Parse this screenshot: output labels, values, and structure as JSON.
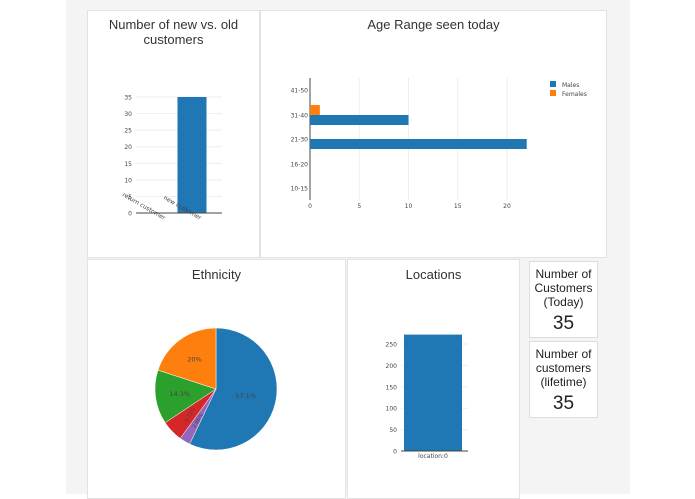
{
  "panels": {
    "new_old": {
      "title": "Number of new vs. old customers"
    },
    "age": {
      "title": "Age Range seen today"
    },
    "ethnicity": {
      "title": "Ethnicity"
    },
    "locations": {
      "title": "Locations"
    }
  },
  "cards": [
    {
      "label": "Number of Customers (Today)",
      "value": "35"
    },
    {
      "label": "Number of customers (lifetime)",
      "value": "35"
    }
  ],
  "chart_data": [
    {
      "type": "bar",
      "categories": [
        "return customer",
        "new customer"
      ],
      "values": [
        0,
        35
      ],
      "ylim": [
        0,
        35
      ],
      "yticks": [
        0,
        5,
        10,
        15,
        20,
        25,
        30,
        35
      ],
      "color": "#1f77b4"
    },
    {
      "type": "bar",
      "orientation": "horizontal",
      "categories": [
        "10-15",
        "16-20",
        "21-30",
        "31-40",
        "41-50"
      ],
      "series": [
        {
          "name": "Males",
          "values": [
            0,
            0,
            22,
            10,
            0
          ],
          "color": "#1f77b4"
        },
        {
          "name": "Females",
          "values": [
            0,
            0,
            0,
            1,
            0
          ],
          "color": "#ff7f0e"
        }
      ],
      "xticks": [
        0,
        5,
        10,
        15,
        20
      ],
      "legend": "top-right"
    },
    {
      "type": "pie",
      "values": [
        57.1,
        2.86,
        5.71,
        14.3,
        20
      ],
      "labels": [
        "57.1%",
        "2.86%",
        "5.71%",
        "14.3%",
        "20%"
      ],
      "colors": [
        "#1f77b4",
        "#9467bd",
        "#d62728",
        "#2ca02c",
        "#ff7f0e"
      ]
    },
    {
      "type": "bar",
      "categories": [
        "location:0"
      ],
      "values": [
        272
      ],
      "yticks": [
        0,
        50,
        100,
        150,
        200,
        250
      ],
      "color": "#1f77b4"
    }
  ]
}
